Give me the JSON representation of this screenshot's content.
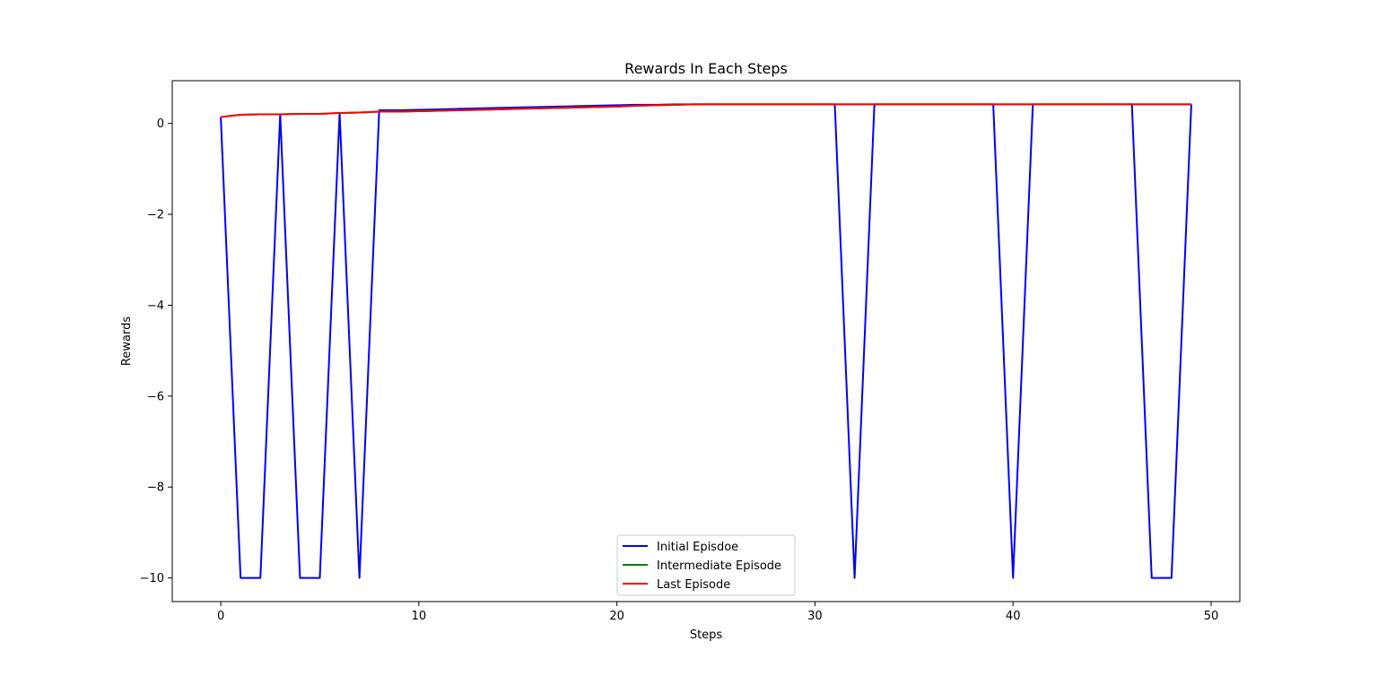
{
  "chart_data": {
    "type": "line",
    "title": "Rewards In Each Steps",
    "xlabel": "Steps",
    "ylabel": "Rewards",
    "xlim": [
      -2.45,
      51.45
    ],
    "ylim": [
      -10.52,
      0.94
    ],
    "xticks": [
      0,
      10,
      20,
      30,
      40,
      50
    ],
    "yticks": [
      -10,
      -8,
      -6,
      -4,
      -2,
      0
    ],
    "ytick_labels": [
      "−10",
      "−8",
      "−6",
      "−4",
      "−2",
      "0"
    ],
    "grid": false,
    "legend_position": "bottom-center",
    "series": [
      {
        "name": "Initial Episdoe",
        "color": "#0000ff",
        "x": [
          0,
          1,
          2,
          3,
          4,
          5,
          6,
          7,
          8,
          9,
          10,
          11,
          12,
          13,
          14,
          15,
          16,
          17,
          18,
          19,
          20,
          21,
          22,
          23,
          24,
          25,
          26,
          27,
          28,
          29,
          30,
          31,
          32,
          33,
          34,
          35,
          36,
          37,
          38,
          39,
          40,
          41,
          42,
          43,
          44,
          45,
          46,
          47,
          48,
          49
        ],
        "y": [
          0.14,
          -10,
          -10,
          0.2,
          -10,
          -10,
          0.23,
          -10,
          0.29,
          0.29,
          0.3,
          0.31,
          0.32,
          0.33,
          0.34,
          0.35,
          0.36,
          0.37,
          0.38,
          0.39,
          0.4,
          0.41,
          0.41,
          0.42,
          0.42,
          0.42,
          0.42,
          0.42,
          0.42,
          0.42,
          0.42,
          0.42,
          -10,
          0.42,
          0.42,
          0.42,
          0.42,
          0.42,
          0.42,
          0.42,
          -10,
          0.42,
          0.42,
          0.42,
          0.42,
          0.42,
          0.42,
          -10,
          -10,
          0.42
        ]
      },
      {
        "name": "Intermediate Episode",
        "color": "#008000",
        "x": [
          0,
          1,
          2,
          3,
          4,
          5,
          6,
          7,
          8,
          9,
          10,
          11,
          12,
          13,
          14,
          15,
          16,
          17,
          18,
          19,
          20,
          21,
          22,
          23,
          24,
          25,
          26,
          27,
          28,
          29,
          30,
          31,
          32,
          33,
          34,
          35,
          36,
          37,
          38,
          39,
          40,
          41,
          42,
          43,
          44,
          45,
          46,
          47,
          48,
          49
        ],
        "y": [
          0.14,
          0.19,
          0.2,
          0.2,
          0.21,
          0.21,
          0.23,
          0.24,
          0.26,
          0.26,
          0.27,
          0.28,
          0.29,
          0.3,
          0.31,
          0.32,
          0.33,
          0.34,
          0.35,
          0.36,
          0.37,
          0.39,
          0.4,
          0.41,
          0.42,
          0.42,
          0.42,
          0.42,
          0.42,
          0.42,
          0.42,
          0.42,
          0.42,
          0.42,
          0.42,
          0.42,
          0.42,
          0.42,
          0.42,
          0.42,
          0.42,
          0.42,
          0.42,
          0.42,
          0.42,
          0.42,
          0.42,
          0.42,
          0.42,
          0.42
        ]
      },
      {
        "name": "Last Episode",
        "color": "#ff0000",
        "x": [
          0,
          1,
          2,
          3,
          4,
          5,
          6,
          7,
          8,
          9,
          10,
          11,
          12,
          13,
          14,
          15,
          16,
          17,
          18,
          19,
          20,
          21,
          22,
          23,
          24,
          25,
          26,
          27,
          28,
          29,
          30,
          31,
          32,
          33,
          34,
          35,
          36,
          37,
          38,
          39,
          40,
          41,
          42,
          43,
          44,
          45,
          46,
          47,
          48,
          49
        ],
        "y": [
          0.14,
          0.19,
          0.2,
          0.2,
          0.21,
          0.21,
          0.23,
          0.24,
          0.26,
          0.26,
          0.27,
          0.28,
          0.29,
          0.3,
          0.31,
          0.32,
          0.33,
          0.34,
          0.35,
          0.36,
          0.37,
          0.39,
          0.4,
          0.41,
          0.42,
          0.42,
          0.42,
          0.42,
          0.42,
          0.42,
          0.42,
          0.42,
          0.42,
          0.42,
          0.42,
          0.42,
          0.42,
          0.42,
          0.42,
          0.42,
          0.42,
          0.42,
          0.42,
          0.42,
          0.42,
          0.42,
          0.42,
          0.42,
          0.42,
          0.42
        ]
      }
    ]
  }
}
